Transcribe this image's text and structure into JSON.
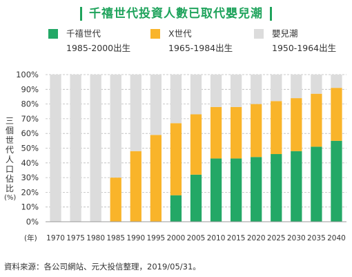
{
  "title": "千禧世代投資人數已取代嬰兒潮",
  "legend": [
    {
      "name": "千禧世代",
      "years": "1985-2000出生",
      "color": "#23a866"
    },
    {
      "name": "X世代",
      "years": "1965-1984出生",
      "color": "#f9b42a"
    },
    {
      "name": "嬰兒潮",
      "years": "1950-1964出生",
      "color": "#dcdcdc"
    }
  ],
  "ylabel_chars": [
    "三",
    "個",
    "世",
    "代",
    "人",
    "口",
    "佔",
    "比",
    "(%)"
  ],
  "xaxis_unit": "(年)",
  "source": "資料來源：各公司網站、元大投信整理，2019/05/31。",
  "chart_data": {
    "type": "bar",
    "stacked": true,
    "categories": [
      "1970",
      "1975",
      "1980",
      "1985",
      "1990",
      "1995",
      "2000",
      "2005",
      "2010",
      "2015",
      "2020",
      "2025",
      "2030",
      "2035",
      "2040"
    ],
    "series": [
      {
        "name": "千禧世代",
        "color": "#23a866",
        "values": [
          0,
          0,
          0,
          0,
          0,
          0,
          18,
          32,
          43,
          43,
          44,
          46,
          48,
          51,
          55
        ]
      },
      {
        "name": "X世代",
        "color": "#f9b42a",
        "values": [
          0,
          0,
          0,
          30,
          48,
          59,
          49,
          41,
          35,
          35,
          36,
          36,
          36,
          36,
          36
        ]
      },
      {
        "name": "嬰兒潮",
        "color": "#dcdcdc",
        "values": [
          100,
          100,
          100,
          70,
          52,
          41,
          33,
          27,
          22,
          22,
          20,
          18,
          16,
          13,
          9
        ]
      }
    ],
    "ylim": [
      0,
      100
    ],
    "yticks": [
      "0%",
      "10%",
      "20%",
      "30%",
      "40%",
      "50%",
      "60%",
      "70%",
      "80%",
      "90%",
      "100%"
    ],
    "grid": true
  }
}
